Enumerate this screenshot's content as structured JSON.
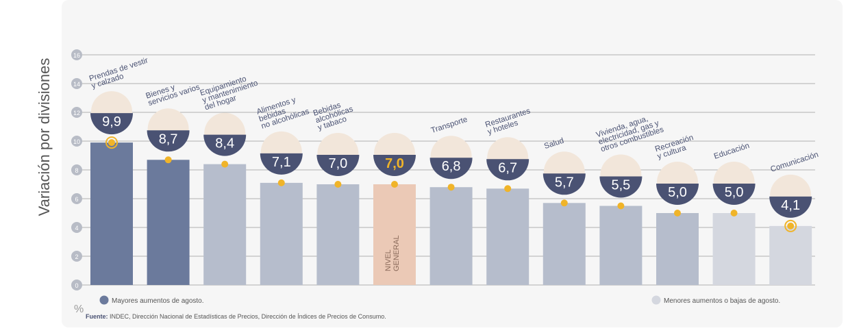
{
  "chart_data": {
    "type": "bar",
    "y_label": "Variación por divisiones",
    "y_unit": "%",
    "categories": [
      [
        "Prendas de vestir",
        "y calzado"
      ],
      [
        "Bienes y",
        "servicios varios"
      ],
      [
        "Equipamiento",
        "y mantenimiento",
        "del hogar"
      ],
      [
        "Alimentos y",
        "bebidas",
        "no alcohólicas"
      ],
      [
        "Bebidas",
        "alcohólicas",
        "y tabaco"
      ],
      [],
      [
        "Transporte"
      ],
      [
        "Restaurantes",
        "y hoteles"
      ],
      [
        "Salud"
      ],
      [
        "Vivienda, agua,",
        "electricidad, gas y",
        "otros combustibles"
      ],
      [
        "Recreación",
        "y cultura"
      ],
      [
        "Educación"
      ],
      [
        "Comunicación"
      ]
    ],
    "values": [
      9.9,
      8.7,
      8.4,
      7.1,
      7.0,
      7.0,
      6.8,
      6.7,
      5.7,
      5.5,
      5.0,
      5.0,
      4.1
    ],
    "value_labels": [
      "9,9",
      "8,7",
      "8,4",
      "7,1",
      "7,0",
      "7,0",
      "6,8",
      "6,7",
      "5,7",
      "5,5",
      "5,0",
      "5,0",
      "4,1"
    ],
    "colors": [
      "#6b7a9c",
      "#6b7a9c",
      "#b6bdcc",
      "#b6bdcc",
      "#b6bdcc",
      "#ebc9b6",
      "#b6bdcc",
      "#b6bdcc",
      "#b6bdcc",
      "#b6bdcc",
      "#b6bdcc",
      "#d4d7df",
      "#d4d7df"
    ],
    "bar_annotation": [
      "NIVEL",
      "GENERAL"
    ],
    "ylim": [
      0,
      16
    ],
    "yticks": [
      0,
      2,
      4,
      6,
      8,
      10,
      12,
      14,
      16
    ],
    "grid": true,
    "legend": [
      {
        "name": "Mayores aumentos de agosto.",
        "color": "#6b7a9c"
      },
      {
        "name": "Menores aumentos o bajas de agosto.",
        "color": "#d4d7df"
      }
    ],
    "source_label": "Fuente:",
    "source": "INDEC, Dirección Nacional de Estadísticas de Precios, Dirección de Índices de Precios de Consumo."
  }
}
